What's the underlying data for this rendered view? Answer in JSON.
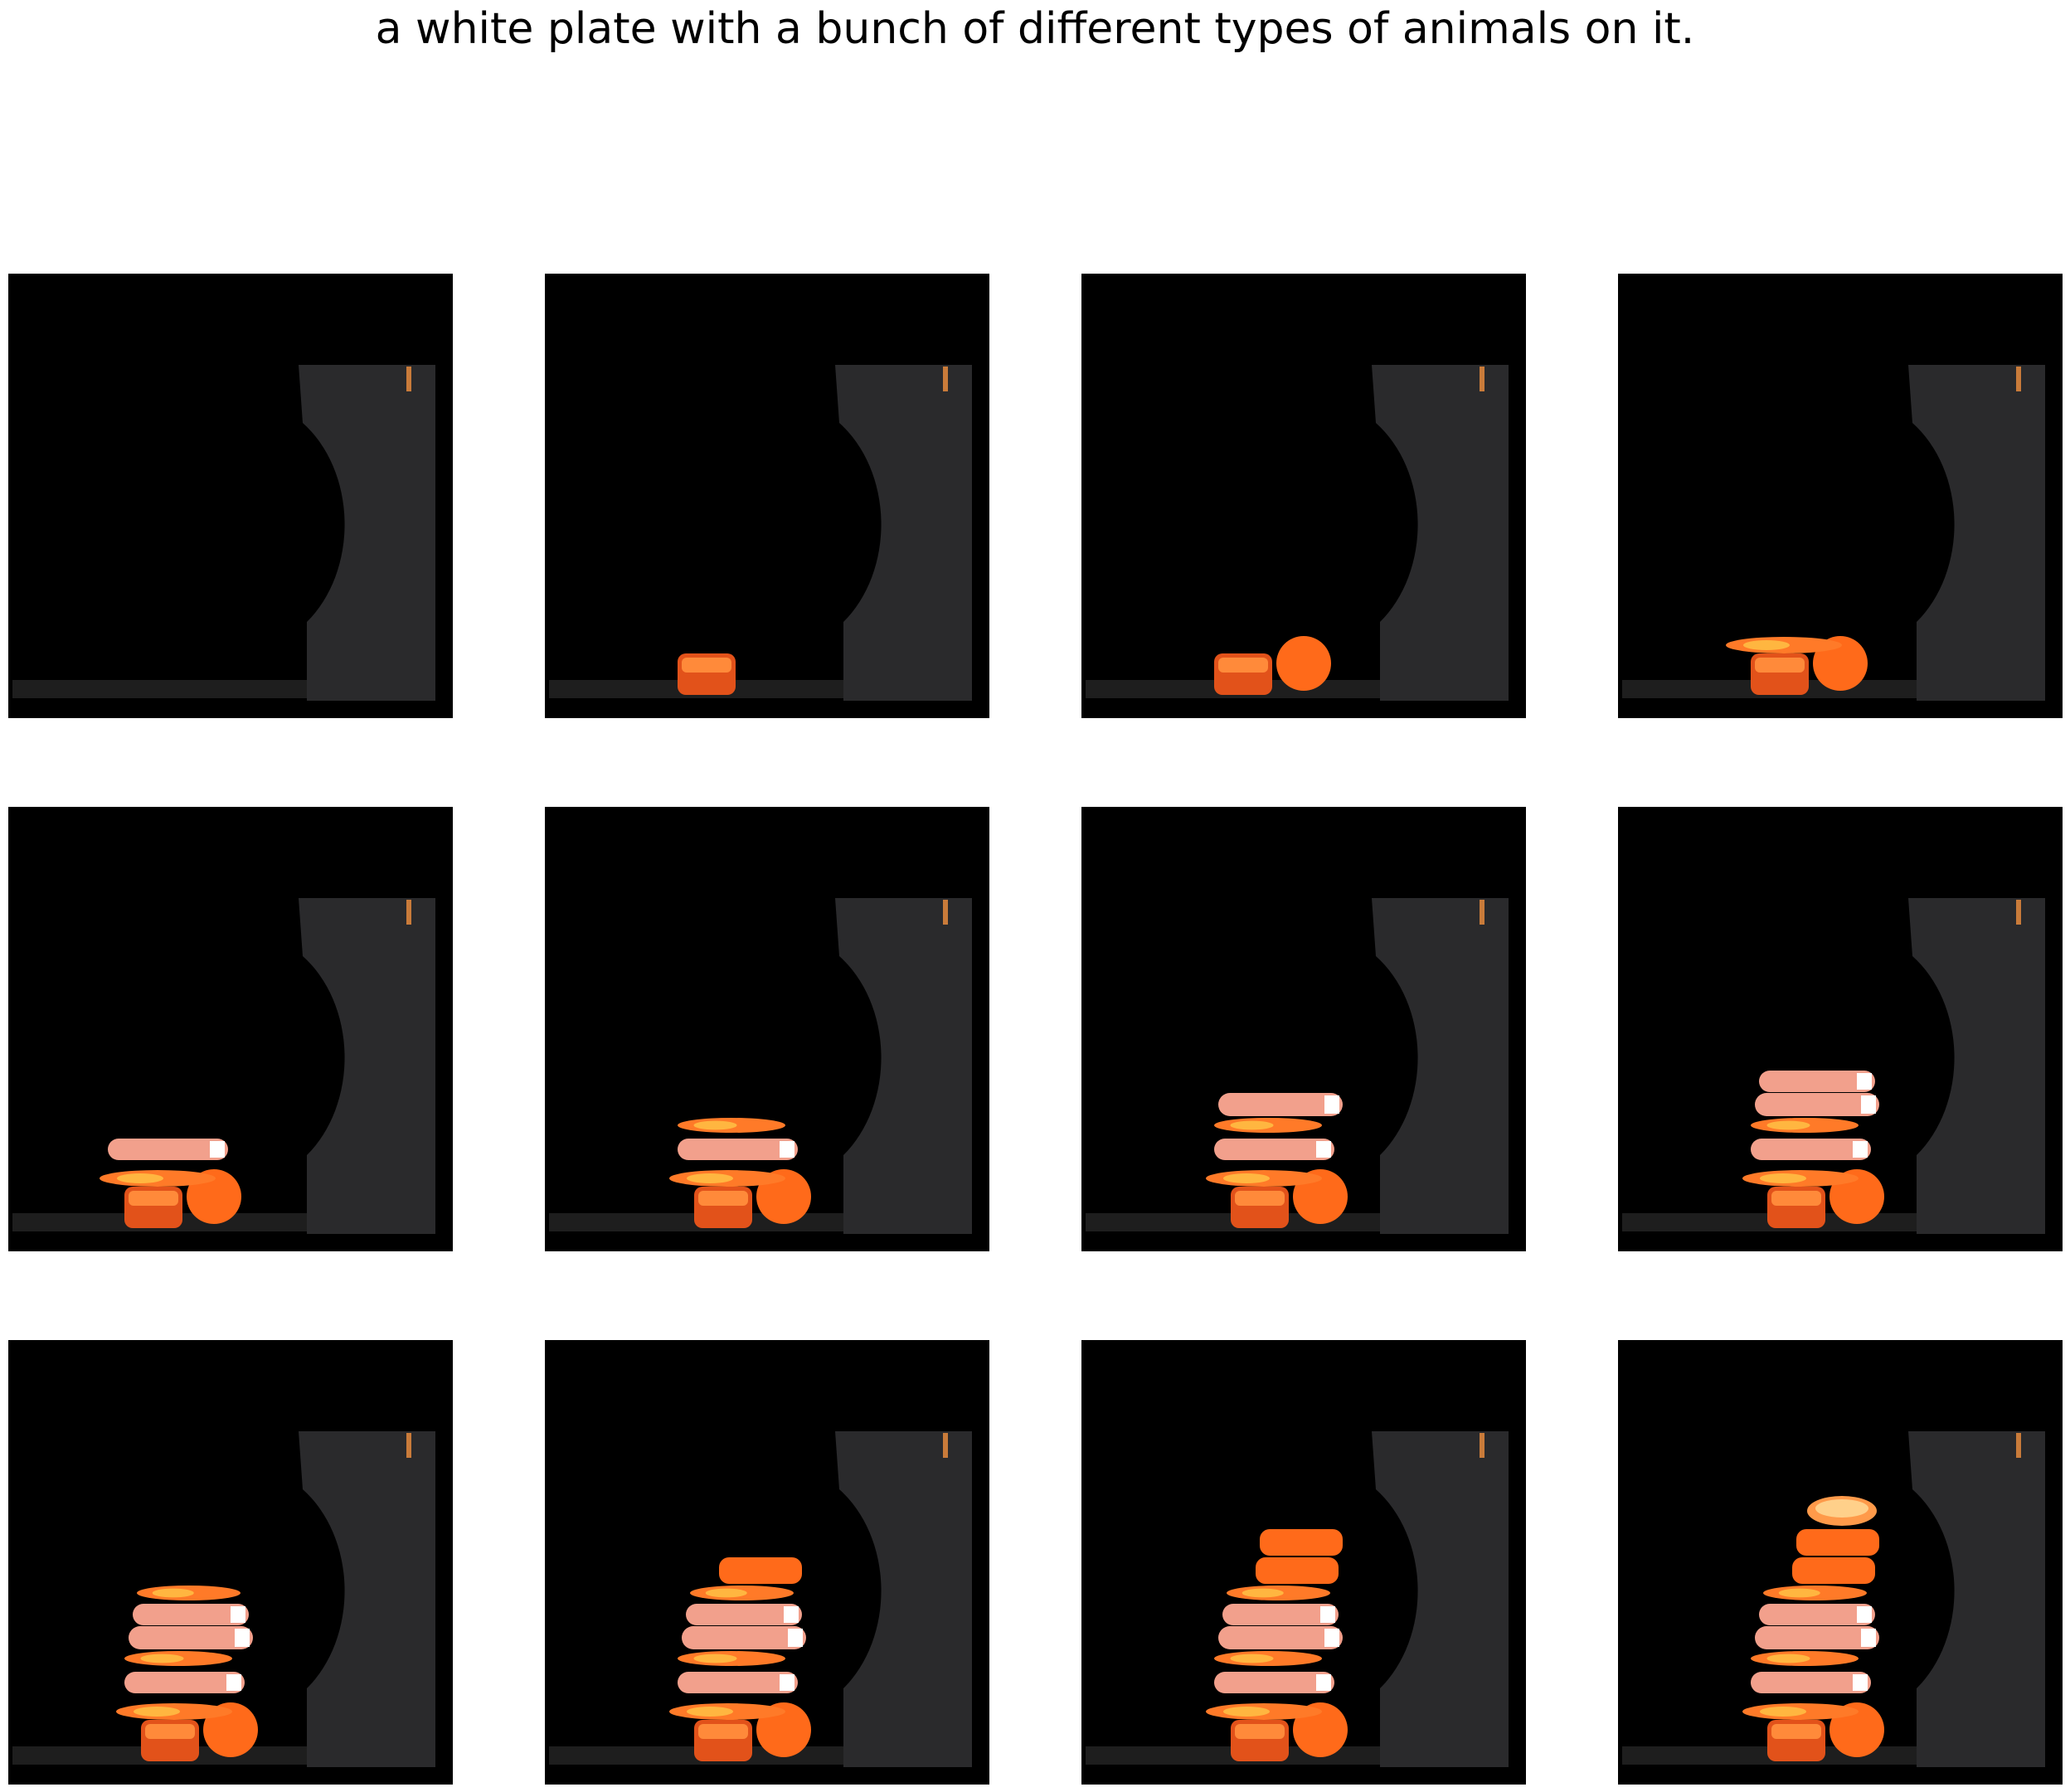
{
  "caption": "a white plate with a bunch of different types of animals on it.",
  "colors": {
    "background": "#000000",
    "board": "#2a2a2c",
    "counter": "#1e1e1e",
    "salmon": "#f2a08c",
    "carrot": "#ff6a1a",
    "stick": "#c97b3a"
  },
  "frames": [
    {
      "step": 1,
      "items": []
    },
    {
      "step": 2,
      "items": [
        "cube"
      ]
    },
    {
      "step": 3,
      "items": [
        "cube",
        "round"
      ]
    },
    {
      "step": 4,
      "items": [
        "cube",
        "round",
        "slice-a"
      ]
    },
    {
      "step": 5,
      "items": [
        "cube",
        "round",
        "slice-a",
        "salmon-1"
      ]
    },
    {
      "step": 6,
      "items": [
        "cube",
        "round",
        "slice-a",
        "salmon-1",
        "slice-b"
      ]
    },
    {
      "step": 7,
      "items": [
        "cube",
        "round",
        "slice-a",
        "salmon-1",
        "slice-b",
        "salmon-2"
      ]
    },
    {
      "step": 8,
      "items": [
        "cube",
        "round",
        "slice-a",
        "salmon-1",
        "slice-b",
        "salmon-2",
        "salmon-3"
      ]
    },
    {
      "step": 9,
      "items": [
        "cube",
        "round",
        "slice-a",
        "salmon-1",
        "slice-b",
        "salmon-2",
        "salmon-3",
        "slice-c"
      ]
    },
    {
      "step": 10,
      "items": [
        "cube",
        "round",
        "slice-a",
        "salmon-1",
        "slice-b",
        "salmon-2",
        "salmon-3",
        "slice-c",
        "carrot-1"
      ]
    },
    {
      "step": 11,
      "items": [
        "cube",
        "round",
        "slice-a",
        "salmon-1",
        "slice-b",
        "salmon-2",
        "salmon-3",
        "slice-c",
        "carrot-1",
        "carrot-2"
      ]
    },
    {
      "step": 12,
      "items": [
        "cube",
        "round",
        "slice-a",
        "salmon-1",
        "slice-b",
        "salmon-2",
        "salmon-3",
        "slice-c",
        "carrot-1",
        "carrot-2",
        "top-slice"
      ]
    }
  ]
}
